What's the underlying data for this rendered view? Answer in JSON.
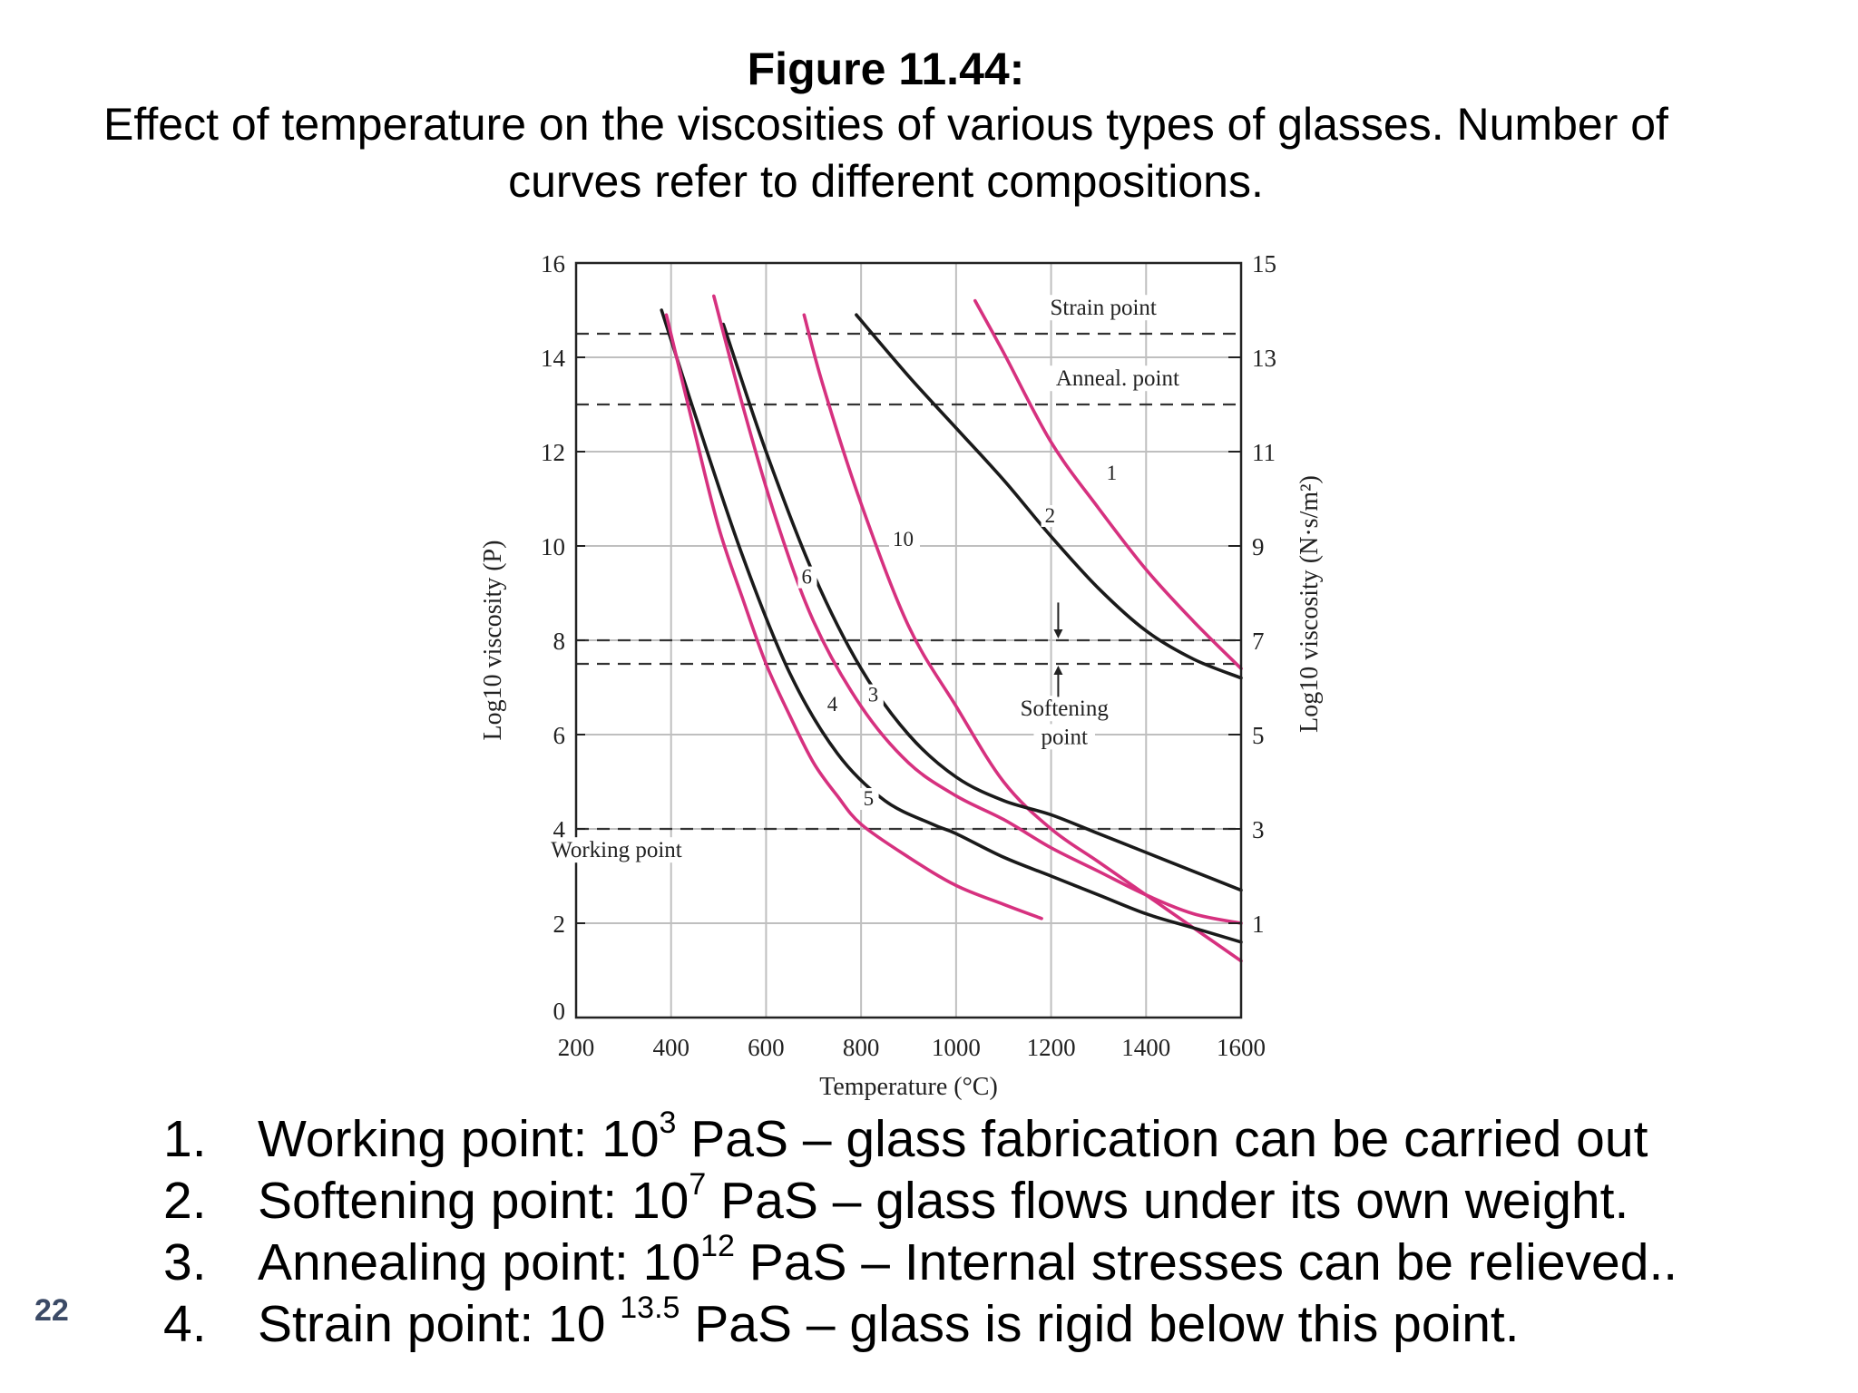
{
  "figure": {
    "title": "Figure 11.44:",
    "caption": "Effect of temperature on the viscosities of various types of glasses. Number of curves refer to different compositions."
  },
  "chart_data": {
    "type": "line",
    "xlabel": "Temperature (°C)",
    "ylabel": "Log10 viscosity (P)",
    "ylabel_right": "Log10 viscosity (N·s/m²)",
    "xlim": [
      200,
      1600
    ],
    "ylim": [
      0,
      16
    ],
    "ylim_right": [
      -1,
      15
    ],
    "x_ticks": [
      200,
      400,
      600,
      800,
      1000,
      1200,
      1400,
      1600
    ],
    "y_ticks": [
      0,
      2,
      4,
      6,
      8,
      10,
      12,
      14,
      16
    ],
    "y_ticks_right": [
      1,
      3,
      5,
      7,
      9,
      11,
      13,
      15
    ],
    "grid": true,
    "colors": {
      "pink": "#d6317f",
      "black": "#1a1a1a",
      "grid": "#bfbfbf"
    },
    "reference_lines": [
      {
        "name": "Strain point",
        "y": 14.5
      },
      {
        "name": "Anneal. point",
        "y": 13.0
      },
      {
        "name": "Softening point",
        "y": 8.0
      },
      {
        "name": "Softening point",
        "y": 7.5
      },
      {
        "name": "Working point",
        "y": 4.0
      }
    ],
    "annotations": [
      {
        "text": "Strain point",
        "x": 1310,
        "y": 14.9
      },
      {
        "text": "Anneal. point",
        "x": 1340,
        "y": 13.4
      },
      {
        "text": "Softening",
        "x": 1228,
        "y": 6.4
      },
      {
        "text": "point",
        "x": 1228,
        "y": 5.8
      },
      {
        "text": "Working point",
        "x": 285,
        "y": 3.4
      }
    ],
    "series": [
      {
        "name": "1",
        "color": "pink",
        "label_at": [
          1330,
          11.4
        ],
        "x": [
          1040,
          1100,
          1200,
          1300,
          1400,
          1500,
          1600
        ],
        "y": [
          15.2,
          14.1,
          12.2,
          10.8,
          9.5,
          8.4,
          7.4
        ]
      },
      {
        "name": "2",
        "color": "black",
        "label_at": [
          1200,
          10.5
        ],
        "x": [
          790,
          900,
          1000,
          1100,
          1200,
          1300,
          1400,
          1500,
          1600
        ],
        "y": [
          14.9,
          13.6,
          12.5,
          11.4,
          10.2,
          9.1,
          8.2,
          7.6,
          7.2
        ]
      },
      {
        "name": "10",
        "color": "pink",
        "label_at": [
          880,
          10.0
        ],
        "x": [
          680,
          720,
          800,
          900,
          1000,
          1100,
          1200,
          1300,
          1400,
          1500,
          1600
        ],
        "y": [
          14.9,
          13.4,
          10.9,
          8.3,
          6.6,
          5.0,
          4.0,
          3.3,
          2.6,
          1.9,
          1.2
        ]
      },
      {
        "name": "6",
        "color": "black",
        "label_at": [
          688,
          9.2
        ],
        "x": [
          510,
          600,
          700,
          800,
          900,
          1000,
          1100,
          1200,
          1300,
          1400,
          1500,
          1600
        ],
        "y": [
          14.7,
          12.0,
          9.4,
          7.4,
          6.0,
          5.1,
          4.6,
          4.3,
          3.9,
          3.5,
          3.1,
          2.7
        ]
      },
      {
        "name": "3",
        "color": "pink",
        "label_at": [
          828,
          6.7
        ],
        "x": [
          490,
          550,
          620,
          700,
          800,
          900,
          1000,
          1100,
          1200,
          1300,
          1400,
          1500,
          1600
        ],
        "y": [
          15.3,
          13.0,
          10.6,
          8.4,
          6.6,
          5.4,
          4.7,
          4.2,
          3.6,
          3.1,
          2.6,
          2.2,
          2.0
        ]
      },
      {
        "name": "4",
        "color": "black",
        "label_at": [
          742,
          6.5
        ],
        "x": [
          380,
          450,
          550,
          650,
          750,
          850,
          950,
          1000,
          1100,
          1200,
          1300,
          1400,
          1500,
          1600
        ],
        "y": [
          15.0,
          12.8,
          9.8,
          7.3,
          5.6,
          4.6,
          4.1,
          3.9,
          3.4,
          3.0,
          2.6,
          2.2,
          1.9,
          1.6
        ]
      },
      {
        "name": "5",
        "color": "pink",
        "label_at": [
          818,
          4.5
        ],
        "x": [
          390,
          450,
          500,
          550,
          600,
          650,
          700,
          750,
          800,
          900,
          1000,
          1100,
          1180
        ],
        "y": [
          14.9,
          12.4,
          10.4,
          8.9,
          7.5,
          6.4,
          5.4,
          4.7,
          4.1,
          3.4,
          2.8,
          2.4,
          2.1
        ]
      }
    ]
  },
  "notes": [
    {
      "num": "1.",
      "pre": "Working point: 10",
      "sup": "3",
      "post": " PaS – glass fabrication can be carried out"
    },
    {
      "num": "2.",
      "pre": "Softening point: 10",
      "sup": "7",
      "post": " PaS – glass flows under its own weight."
    },
    {
      "num": "3.",
      "pre": "Annealing point: 10",
      "sup": "12",
      "post": " PaS – Internal stresses can be relieved.."
    },
    {
      "num": "4.",
      "pre": "Strain point: 10 ",
      "sup": "13.5",
      "post": " PaS – glass is rigid below this point."
    }
  ],
  "slide_number": "22"
}
